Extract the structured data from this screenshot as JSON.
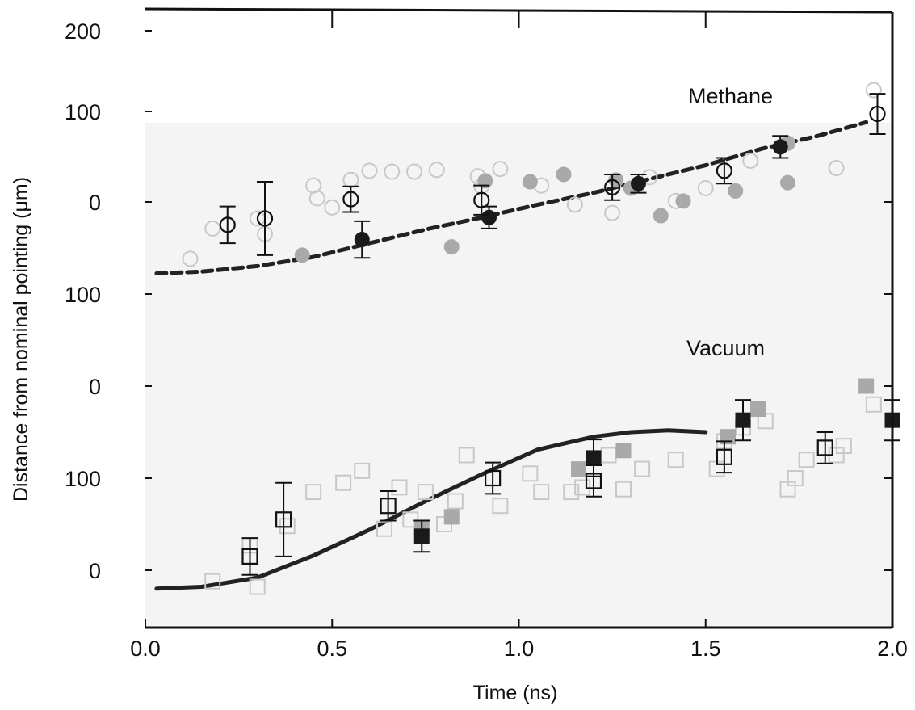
{
  "chart_data": {
    "type": "scatter",
    "xlabel": "Time (ns)",
    "ylabel": "Distance from nominal pointing (μm)",
    "xlim": [
      0.0,
      2.0
    ],
    "x_ticks": [
      {
        "value": 0.0,
        "label": "0.0"
      },
      {
        "value": 0.5,
        "label": "0.5"
      },
      {
        "value": 1.0,
        "label": "1.0"
      },
      {
        "value": 1.5,
        "label": "1.5"
      },
      {
        "value": 2.0,
        "label": "2.0"
      }
    ],
    "y_ticks": [
      {
        "label": "200"
      },
      {
        "label": "100"
      },
      {
        "label": "0"
      },
      {
        "label": "100"
      },
      {
        "label": "0"
      },
      {
        "label": "100"
      },
      {
        "label": "0"
      }
    ],
    "colors": {
      "background": "#f4f4f4",
      "line": "#222222",
      "light_marker": "#c8c8c8",
      "gray_marker": "#a9a9a9",
      "dark_marker": "#1a1a1a"
    },
    "panels": [
      {
        "label": "Methane",
        "ylim": [
          -100,
          200
        ],
        "model_line": {
          "style": "dashed",
          "x": [
            0.03,
            0.15,
            0.3,
            0.45,
            0.6,
            0.75,
            0.9,
            1.05,
            1.2,
            1.35,
            1.5,
            1.65,
            1.8,
            1.93
          ],
          "y": [
            -78,
            -76,
            -70,
            -60,
            -45,
            -30,
            -17,
            -3,
            10,
            25,
            40,
            58,
            72,
            87
          ]
        },
        "series": [
          {
            "marker": "light-circle",
            "x": [
              0.12,
              0.18,
              0.3,
              0.32,
              0.45,
              0.46,
              0.5,
              0.55,
              0.6,
              0.66,
              0.72,
              0.78,
              0.89,
              0.9,
              0.95,
              1.06,
              1.15,
              1.25,
              1.35,
              1.42,
              1.5,
              1.62,
              1.85,
              1.95
            ],
            "y": [
              -62,
              -29,
              -18,
              -35,
              18,
              4,
              -6,
              24,
              34,
              33,
              33,
              35,
              28,
              17,
              36,
              18,
              -3,
              -12,
              27,
              1,
              15,
              45,
              37,
              122
            ]
          },
          {
            "marker": "gray-circle",
            "x": [
              0.42,
              0.82,
              0.91,
              1.03,
              1.12,
              1.26,
              1.3,
              1.38,
              1.44,
              1.58,
              1.72,
              1.72
            ],
            "y": [
              -58,
              -49,
              23,
              22,
              30,
              24,
              15,
              -15,
              1,
              12,
              21,
              64
            ]
          },
          {
            "marker": "black-circle",
            "x": [
              0.58,
              0.92,
              1.32,
              1.7
            ],
            "y": [
              -41,
              -17,
              20,
              60
            ],
            "err": [
              20,
              12,
              10,
              12
            ]
          },
          {
            "marker": "open-circle",
            "x": [
              0.22,
              0.32,
              0.55,
              0.9,
              1.25,
              1.55,
              1.96
            ],
            "y": [
              -25,
              -18,
              3,
              2,
              16,
              34,
              96
            ],
            "err": [
              20,
              40,
              14,
              16,
              14,
              14,
              22
            ]
          }
        ]
      },
      {
        "label": "Vacuum",
        "ylim": [
          -100,
          200
        ],
        "model_line": {
          "style": "solid",
          "x": [
            0.03,
            0.15,
            0.3,
            0.45,
            0.6,
            0.75,
            0.9,
            1.05,
            1.2,
            1.3,
            1.4,
            1.5
          ],
          "y": [
            -20,
            -18,
            -8,
            16,
            44,
            75,
            104,
            131,
            145,
            150,
            152,
            150
          ]
        },
        "series": [
          {
            "marker": "light-square",
            "x": [
              0.18,
              0.28,
              0.3,
              0.38,
              0.45,
              0.53,
              0.58,
              0.64,
              0.68,
              0.71,
              0.75,
              0.8,
              0.83,
              0.86,
              0.95,
              1.03,
              1.06,
              1.14,
              1.17,
              1.24,
              1.28,
              1.33,
              1.42,
              1.53,
              1.55,
              1.6,
              1.66,
              1.72,
              1.74,
              1.77,
              1.85,
              1.87,
              1.95
            ],
            "y": [
              -12,
              27,
              -18,
              48,
              85,
              95,
              108,
              45,
              90,
              55,
              85,
              50,
              75,
              125,
              70,
              105,
              85,
              85,
              90,
              125,
              88,
              110,
              120,
              110,
              140,
              155,
              162,
              88,
              100,
              120,
              125,
              135,
              180
            ]
          },
          {
            "marker": "gray-square",
            "x": [
              0.74,
              0.82,
              1.16,
              1.28,
              1.56,
              1.64,
              1.93
            ],
            "y": [
              45,
              58,
              110,
              130,
              145,
              175,
              200
            ]
          },
          {
            "marker": "black-square",
            "x": [
              0.74,
              1.2,
              1.6,
              2.0
            ],
            "y": [
              37,
              122,
              163,
              163
            ],
            "err": [
              17,
              20,
              22,
              22
            ]
          },
          {
            "marker": "open-square",
            "x": [
              0.28,
              0.37,
              0.65,
              0.93,
              1.2,
              1.55,
              1.82
            ],
            "y": [
              15,
              55,
              70,
              100,
              97,
              123,
              133
            ],
            "err": [
              20,
              40,
              16,
              17,
              17,
              17,
              17
            ]
          }
        ]
      }
    ]
  }
}
